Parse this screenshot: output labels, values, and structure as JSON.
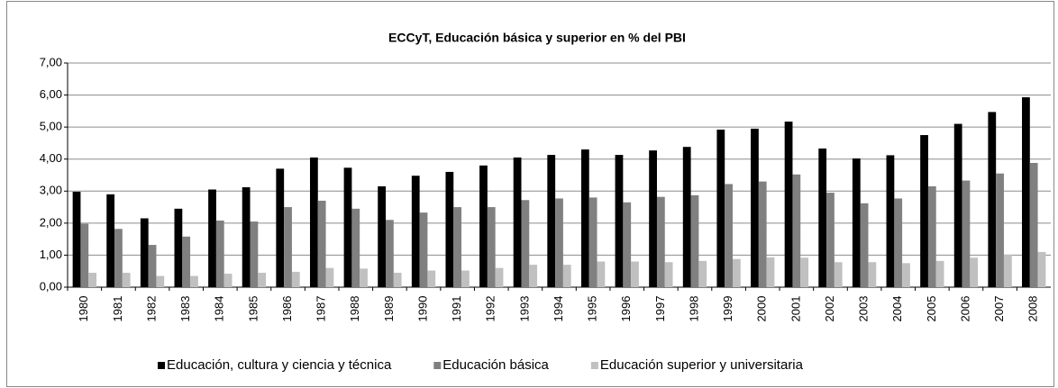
{
  "chart_data": {
    "type": "bar",
    "title": "ECCyT, Educación básica y superior en % del PBI",
    "categories": [
      "1980",
      "1981",
      "1982",
      "1983",
      "1984",
      "1985",
      "1986",
      "1987",
      "1988",
      "1989",
      "1990",
      "1991",
      "1992",
      "1993",
      "1994",
      "1995",
      "1996",
      "1997",
      "1998",
      "1999",
      "2000",
      "2001",
      "2002",
      "2003",
      "2004",
      "2005",
      "2006",
      "2007",
      "2008"
    ],
    "series": [
      {
        "name": "Educación, cultura y ciencia y técnica",
        "color": "#000000",
        "values": [
          2.98,
          2.9,
          2.15,
          2.45,
          3.05,
          3.12,
          3.7,
          4.05,
          3.73,
          3.15,
          3.48,
          3.6,
          3.8,
          4.05,
          4.13,
          4.3,
          4.13,
          4.27,
          4.38,
          4.92,
          4.95,
          5.17,
          4.33,
          4.02,
          4.12,
          4.75,
          5.1,
          5.47,
          5.93
        ]
      },
      {
        "name": "Educación básica",
        "color": "#808080",
        "values": [
          1.98,
          1.82,
          1.32,
          1.58,
          2.08,
          2.05,
          2.5,
          2.7,
          2.45,
          2.1,
          2.33,
          2.5,
          2.5,
          2.72,
          2.77,
          2.8,
          2.65,
          2.82,
          2.87,
          3.22,
          3.3,
          3.52,
          2.95,
          2.62,
          2.77,
          3.15,
          3.33,
          3.55,
          3.88
        ]
      },
      {
        "name": "Educación superior y universitaria",
        "color": "#c0c0c0",
        "values": [
          0.45,
          0.45,
          0.35,
          0.35,
          0.42,
          0.45,
          0.48,
          0.6,
          0.58,
          0.45,
          0.52,
          0.52,
          0.6,
          0.7,
          0.7,
          0.8,
          0.8,
          0.78,
          0.82,
          0.88,
          0.93,
          0.92,
          0.78,
          0.78,
          0.75,
          0.82,
          0.92,
          1.02,
          1.1
        ]
      }
    ],
    "ylim": [
      0,
      7
    ],
    "yticks": [
      {
        "value": 0,
        "label": "0,00"
      },
      {
        "value": 1,
        "label": "1,00"
      },
      {
        "value": 2,
        "label": "2,00"
      },
      {
        "value": 3,
        "label": "3,00"
      },
      {
        "value": 4,
        "label": "4,00"
      },
      {
        "value": 5,
        "label": "5,00"
      },
      {
        "value": 6,
        "label": "6,00"
      },
      {
        "value": 7,
        "label": "7,00"
      }
    ],
    "grid": true,
    "legend": "bottom"
  }
}
